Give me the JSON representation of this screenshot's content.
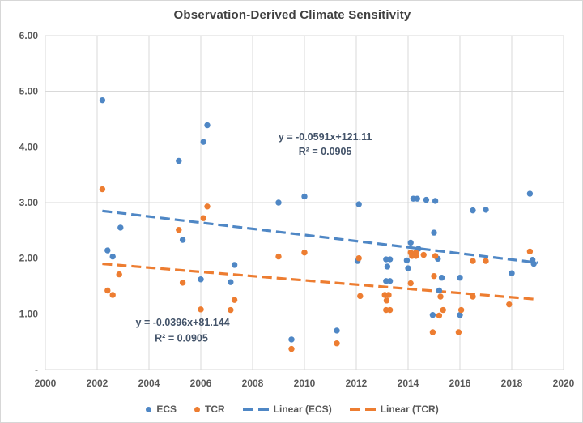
{
  "chart_data": {
    "type": "scatter",
    "title": "Observation-Derived Climate Sensitivity",
    "grid": true,
    "legend_position": "bottom",
    "x_axis": {
      "min": 2000,
      "max": 2020,
      "tick_values": [
        2000,
        2002,
        2004,
        2006,
        2008,
        2010,
        2012,
        2014,
        2016,
        2018,
        2020
      ],
      "tick_labels": [
        "2000",
        "2002",
        "2004",
        "2006",
        "2008",
        "2010",
        "2012",
        "2014",
        "2016",
        "2018",
        "2020"
      ]
    },
    "y_axis": {
      "min": 0,
      "max": 6,
      "tick_values": [
        6,
        5,
        4,
        3,
        2,
        1,
        0
      ],
      "tick_labels": [
        "6.00",
        "5.00",
        "4.00",
        "3.00",
        "2.00",
        "1.00",
        "-"
      ]
    },
    "series": [
      {
        "name": "ECS",
        "color": "#4F87C5",
        "marker": "circle",
        "points": [
          [
            2002.2,
            4.84
          ],
          [
            2002.4,
            2.14
          ],
          [
            2002.6,
            2.03
          ],
          [
            2002.9,
            2.55
          ],
          [
            2005.15,
            3.75
          ],
          [
            2005.3,
            2.33
          ],
          [
            2006.0,
            1.62
          ],
          [
            2006.1,
            4.09
          ],
          [
            2006.25,
            4.39
          ],
          [
            2007.15,
            1.57
          ],
          [
            2007.3,
            1.88
          ],
          [
            2009.0,
            3.0
          ],
          [
            2009.5,
            0.54
          ],
          [
            2010.0,
            3.11
          ],
          [
            2011.25,
            0.7
          ],
          [
            2012.05,
            1.95
          ],
          [
            2012.1,
            2.97
          ],
          [
            2013.15,
            1.98
          ],
          [
            2013.3,
            1.98
          ],
          [
            2013.2,
            1.85
          ],
          [
            2013.15,
            1.59
          ],
          [
            2013.3,
            1.59
          ],
          [
            2013.95,
            1.96
          ],
          [
            2014.0,
            1.82
          ],
          [
            2014.1,
            2.28
          ],
          [
            2014.2,
            3.07
          ],
          [
            2014.35,
            3.07
          ],
          [
            2014.4,
            2.17
          ],
          [
            2014.7,
            3.05
          ],
          [
            2014.95,
            0.98
          ],
          [
            2015.0,
            2.46
          ],
          [
            2015.05,
            3.03
          ],
          [
            2015.15,
            1.99
          ],
          [
            2015.2,
            1.42
          ],
          [
            2015.3,
            1.65
          ],
          [
            2016.0,
            0.98
          ],
          [
            2016.0,
            1.65
          ],
          [
            2016.5,
            2.86
          ],
          [
            2017.0,
            2.87
          ],
          [
            2018.0,
            1.73
          ],
          [
            2018.7,
            3.16
          ],
          [
            2018.8,
            1.97
          ],
          [
            2018.85,
            1.9
          ]
        ]
      },
      {
        "name": "TCR",
        "color": "#ED7D31",
        "marker": "circle",
        "points": [
          [
            2002.2,
            3.24
          ],
          [
            2002.4,
            1.42
          ],
          [
            2002.6,
            1.34
          ],
          [
            2002.85,
            1.71
          ],
          [
            2005.15,
            2.51
          ],
          [
            2005.3,
            1.56
          ],
          [
            2006.0,
            1.08
          ],
          [
            2006.1,
            2.72
          ],
          [
            2006.25,
            2.93
          ],
          [
            2007.15,
            1.07
          ],
          [
            2007.3,
            1.25
          ],
          [
            2009.0,
            2.03
          ],
          [
            2009.5,
            0.37
          ],
          [
            2010.0,
            2.1
          ],
          [
            2011.25,
            0.47
          ],
          [
            2012.1,
            2.0
          ],
          [
            2012.15,
            1.32
          ],
          [
            2013.1,
            1.34
          ],
          [
            2013.25,
            1.34
          ],
          [
            2013.17,
            1.24
          ],
          [
            2013.15,
            1.07
          ],
          [
            2013.3,
            1.07
          ],
          [
            2014.1,
            2.1
          ],
          [
            2014.3,
            2.1
          ],
          [
            2014.15,
            2.04
          ],
          [
            2014.3,
            2.04
          ],
          [
            2014.6,
            2.06
          ],
          [
            2014.1,
            1.55
          ],
          [
            2014.95,
            0.67
          ],
          [
            2015.05,
            2.04
          ],
          [
            2015.0,
            1.68
          ],
          [
            2015.2,
            0.97
          ],
          [
            2015.25,
            1.31
          ],
          [
            2015.35,
            1.07
          ],
          [
            2015.95,
            0.67
          ],
          [
            2016.05,
            1.07
          ],
          [
            2016.5,
            1.31
          ],
          [
            2016.5,
            1.95
          ],
          [
            2017.0,
            1.95
          ],
          [
            2017.9,
            1.17
          ],
          [
            2018.7,
            2.12
          ]
        ]
      }
    ],
    "trendlines": [
      {
        "name": "Linear (ECS)",
        "color": "#4F87C5",
        "style": "dashed",
        "x1": 2002.2,
        "y1": 2.85,
        "x2": 2019.0,
        "y2": 1.92,
        "equation": "y = -0.0591x+121.11",
        "r_squared": "R² = 0.0905"
      },
      {
        "name": "Linear (TCR)",
        "color": "#ED7D31",
        "style": "dashed",
        "x1": 2002.2,
        "y1": 1.9,
        "x2": 2019.0,
        "y2": 1.26,
        "equation": "y = -0.0396x+81.144",
        "r_squared": "R² = 0.0905"
      }
    ],
    "annotations": [
      {
        "text": "y = -0.0591x+121.11",
        "x": 2010.8,
        "y": 4.12
      },
      {
        "text": "R² = 0.0905",
        "x": 2010.8,
        "y": 3.86
      },
      {
        "text": "y = -0.0396x+81.144",
        "x": 2005.3,
        "y": 0.79
      },
      {
        "text": "R² = 0.0905",
        "x": 2005.25,
        "y": 0.5
      }
    ],
    "legend_items": [
      {
        "label": "ECS",
        "marker": "dot",
        "color": "#4F87C5"
      },
      {
        "label": "TCR",
        "marker": "dot",
        "color": "#ED7D31"
      },
      {
        "label": "Linear (ECS)",
        "marker": "dash",
        "color": "#4F87C5"
      },
      {
        "label": "Linear (TCR)",
        "marker": "dash",
        "color": "#ED7D31"
      }
    ]
  },
  "colors": {
    "ecs": "#4F87C5",
    "tcr": "#ED7D31",
    "gridline": "#D9D9D9",
    "plot_border": "#D9D9D9",
    "axis_text": "#595959",
    "title_text": "#404040",
    "annotation_text": "#44546A",
    "background": "#FFFFFF"
  }
}
